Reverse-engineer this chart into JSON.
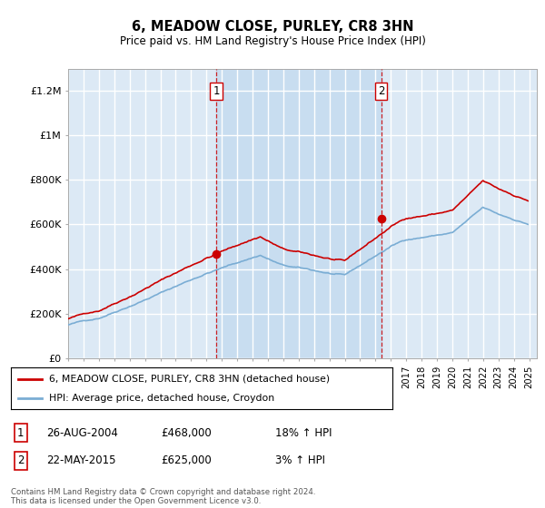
{
  "title": "6, MEADOW CLOSE, PURLEY, CR8 3HN",
  "subtitle": "Price paid vs. HM Land Registry's House Price Index (HPI)",
  "legend_line1": "6, MEADOW CLOSE, PURLEY, CR8 3HN (detached house)",
  "legend_line2": "HPI: Average price, detached house, Croydon",
  "transaction1_label": "1",
  "transaction1_date": "26-AUG-2004",
  "transaction1_price": "£468,000",
  "transaction1_hpi": "18% ↑ HPI",
  "transaction1_year": 2004.646,
  "transaction1_value": 468000,
  "transaction2_label": "2",
  "transaction2_date": "22-MAY-2015",
  "transaction2_price": "£625,000",
  "transaction2_hpi": "3% ↑ HPI",
  "transaction2_year": 2015.38,
  "transaction2_value": 625000,
  "footer": "Contains HM Land Registry data © Crown copyright and database right 2024.\nThis data is licensed under the Open Government Licence v3.0.",
  "ylim": [
    0,
    1300000
  ],
  "xlim_start": 1995.0,
  "xlim_end": 2025.5,
  "plot_bg": "#dce9f5",
  "shade_bg": "#c8ddf0",
  "hpi_color": "#7aadd4",
  "price_color": "#cc0000",
  "vline_color": "#cc0000",
  "grid_color": "#ffffff",
  "yticks": [
    0,
    200000,
    400000,
    600000,
    800000,
    1000000,
    1200000
  ],
  "ytick_labels": [
    "£0",
    "£200K",
    "£400K",
    "£600K",
    "£800K",
    "£1M",
    "£1.2M"
  ]
}
